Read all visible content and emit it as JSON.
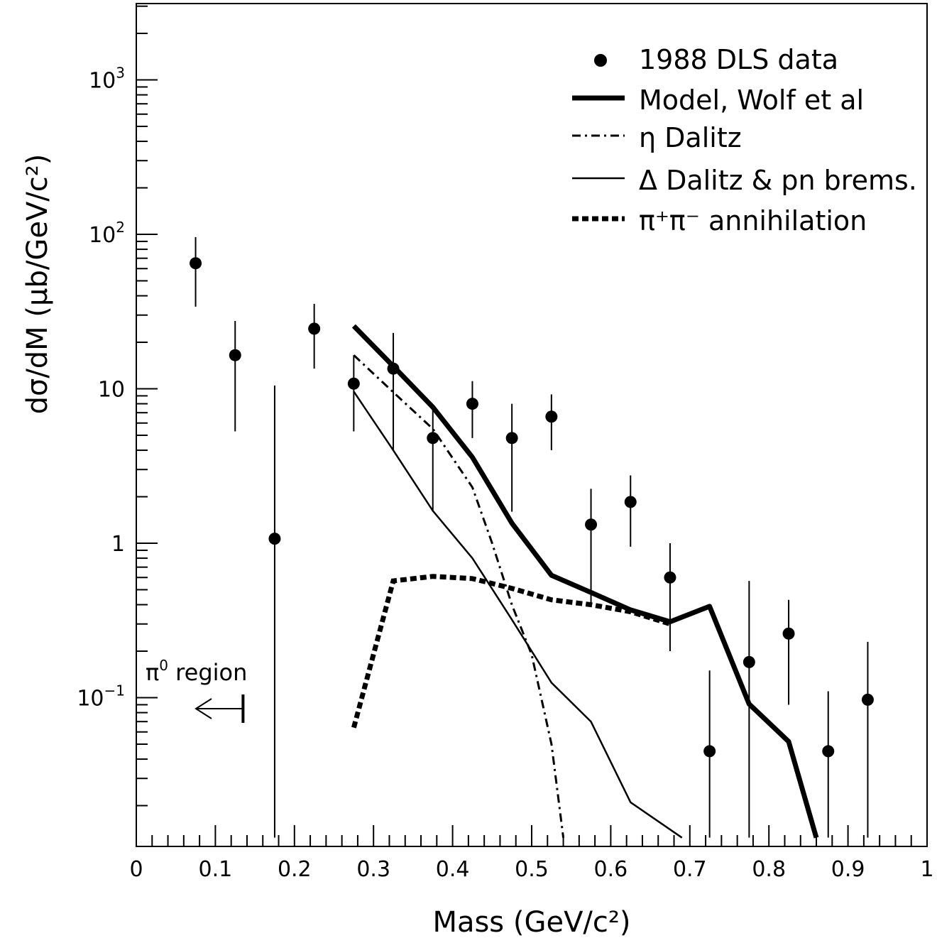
{
  "chart_data": {
    "type": "scatter",
    "xlabel": "Mass (GeV/c²)",
    "ylabel": "dσ/dM  (μb/GeV/c²)",
    "x_scale": "linear",
    "y_scale": "log",
    "xlim": [
      0,
      1
    ],
    "ylim": [
      0.0124,
      3000
    ],
    "grid": false,
    "legend_position": "top-right",
    "x_ticks": [
      {
        "value": 0,
        "label": "0"
      },
      {
        "value": 0.1,
        "label": "0.1"
      },
      {
        "value": 0.2,
        "label": "0.2"
      },
      {
        "value": 0.3,
        "label": "0.3"
      },
      {
        "value": 0.4,
        "label": "0.4"
      },
      {
        "value": 0.5,
        "label": "0.5"
      },
      {
        "value": 0.6,
        "label": "0.6"
      },
      {
        "value": 0.7,
        "label": "0.7"
      },
      {
        "value": 0.8,
        "label": "0.8"
      },
      {
        "value": 0.9,
        "label": "0.9"
      },
      {
        "value": 1,
        "label": "1"
      }
    ],
    "y_ticks": [
      {
        "value": 0.1,
        "label": "10",
        "sup": "−1"
      },
      {
        "value": 1,
        "label": "1",
        "sup": ""
      },
      {
        "value": 10,
        "label": "10",
        "sup": ""
      },
      {
        "value": 100,
        "label": "10",
        "sup": "2"
      },
      {
        "value": 1000,
        "label": "10",
        "sup": "3"
      }
    ],
    "series": [
      {
        "name": "1988 DLS data",
        "kind": "points",
        "points": [
          {
            "x": 0.075,
            "y": 65,
            "ylo": 34,
            "yhi": 96
          },
          {
            "x": 0.125,
            "y": 16.5,
            "ylo": 5.3,
            "yhi": 27.5
          },
          {
            "x": 0.175,
            "y": 1.07,
            "ylo": 0.0124,
            "yhi": 10.5
          },
          {
            "x": 0.225,
            "y": 24.5,
            "ylo": 13.5,
            "yhi": 35.5
          },
          {
            "x": 0.275,
            "y": 10.8,
            "ylo": 5.3,
            "yhi": 16.5
          },
          {
            "x": 0.325,
            "y": 13.5,
            "ylo": 4.0,
            "yhi": 23.0
          },
          {
            "x": 0.375,
            "y": 4.8,
            "ylo": 1.6,
            "yhi": 7.5
          },
          {
            "x": 0.425,
            "y": 8.0,
            "ylo": 4.8,
            "yhi": 11.2
          },
          {
            "x": 0.475,
            "y": 4.8,
            "ylo": 1.6,
            "yhi": 8.0
          },
          {
            "x": 0.525,
            "y": 6.6,
            "ylo": 4.0,
            "yhi": 9.2
          },
          {
            "x": 0.575,
            "y": 1.32,
            "ylo": 0.41,
            "yhi": 2.25
          },
          {
            "x": 0.625,
            "y": 1.85,
            "ylo": 0.95,
            "yhi": 2.75
          },
          {
            "x": 0.675,
            "y": 0.6,
            "ylo": 0.2,
            "yhi": 1.0
          },
          {
            "x": 0.725,
            "y": 0.045,
            "ylo": 0.0124,
            "yhi": 0.15
          },
          {
            "x": 0.775,
            "y": 0.17,
            "ylo": 0.0124,
            "yhi": 0.57
          },
          {
            "x": 0.825,
            "y": 0.26,
            "ylo": 0.09,
            "yhi": 0.43
          },
          {
            "x": 0.875,
            "y": 0.045,
            "ylo": 0.0124,
            "yhi": 0.11
          },
          {
            "x": 0.925,
            "y": 0.097,
            "ylo": 0.0124,
            "yhi": 0.23
          }
        ]
      },
      {
        "name": "Model,  Wolf et al",
        "kind": "line",
        "style": "thick",
        "points": [
          {
            "x": 0.275,
            "y": 25.5
          },
          {
            "x": 0.325,
            "y": 14.0
          },
          {
            "x": 0.375,
            "y": 7.6
          },
          {
            "x": 0.425,
            "y": 3.6
          },
          {
            "x": 0.475,
            "y": 1.35
          },
          {
            "x": 0.525,
            "y": 0.62
          },
          {
            "x": 0.575,
            "y": 0.48
          },
          {
            "x": 0.625,
            "y": 0.37
          },
          {
            "x": 0.675,
            "y": 0.31
          },
          {
            "x": 0.725,
            "y": 0.39
          },
          {
            "x": 0.775,
            "y": 0.091
          },
          {
            "x": 0.825,
            "y": 0.052
          },
          {
            "x": 0.86,
            "y": 0.0124
          }
        ]
      },
      {
        "name": "η Dalitz",
        "kind": "line",
        "style": "dash-dot",
        "points": [
          {
            "x": 0.275,
            "y": 16.5
          },
          {
            "x": 0.325,
            "y": 9.5
          },
          {
            "x": 0.375,
            "y": 5.5
          },
          {
            "x": 0.425,
            "y": 2.3
          },
          {
            "x": 0.45,
            "y": 1.0
          },
          {
            "x": 0.475,
            "y": 0.4
          },
          {
            "x": 0.5,
            "y": 0.19
          },
          {
            "x": 0.525,
            "y": 0.05
          },
          {
            "x": 0.54,
            "y": 0.0124
          }
        ]
      },
      {
        "name": "Δ Dalitz & pn brems.",
        "kind": "line",
        "style": "thin",
        "points": [
          {
            "x": 0.275,
            "y": 9.6
          },
          {
            "x": 0.325,
            "y": 4.0
          },
          {
            "x": 0.375,
            "y": 1.62
          },
          {
            "x": 0.425,
            "y": 0.8
          },
          {
            "x": 0.475,
            "y": 0.32
          },
          {
            "x": 0.525,
            "y": 0.125
          },
          {
            "x": 0.575,
            "y": 0.07
          },
          {
            "x": 0.625,
            "y": 0.021
          },
          {
            "x": 0.675,
            "y": 0.014
          },
          {
            "x": 0.69,
            "y": 0.0124
          }
        ]
      },
      {
        "name": "π⁺π⁻ annihilation",
        "kind": "line",
        "style": "thick-dotted",
        "points": [
          {
            "x": 0.275,
            "y": 0.064
          },
          {
            "x": 0.325,
            "y": 0.57
          },
          {
            "x": 0.375,
            "y": 0.61
          },
          {
            "x": 0.425,
            "y": 0.59
          },
          {
            "x": 0.475,
            "y": 0.51
          },
          {
            "x": 0.525,
            "y": 0.43
          },
          {
            "x": 0.575,
            "y": 0.4
          },
          {
            "x": 0.625,
            "y": 0.36
          },
          {
            "x": 0.675,
            "y": 0.3
          }
        ]
      }
    ],
    "annotations": [
      {
        "text": "region",
        "symbol": "π",
        "sup": "0",
        "note": "arrow pointing left to x = 0.135"
      }
    ]
  }
}
